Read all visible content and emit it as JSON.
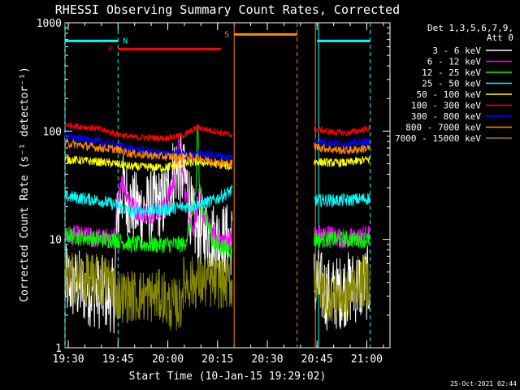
{
  "chart_data": {
    "type": "line",
    "title": "RHESSI Observing Summary Count Rates, Corrected",
    "xlabel": "Start Time (10-Jan-15 19:29:02)",
    "ylabel": "Corrected Count Rate (s⁻¹ detector⁻¹)",
    "y_scale": "log",
    "ylim": [
      1,
      1000
    ],
    "xlim_minutes": [
      0,
      98
    ],
    "x_ticks": [
      {
        "label": "19:30",
        "t": 1
      },
      {
        "label": "19:45",
        "t": 16
      },
      {
        "label": "20:00",
        "t": 31
      },
      {
        "label": "20:15",
        "t": 46
      },
      {
        "label": "20:30",
        "t": 61
      },
      {
        "label": "20:45",
        "t": 76
      },
      {
        "label": "21:00",
        "t": 91
      }
    ],
    "y_ticks": [
      {
        "label": "1",
        "v": 1
      },
      {
        "label": "10",
        "v": 10
      },
      {
        "label": "100",
        "v": 100
      },
      {
        "label": "1000",
        "v": 1000
      }
    ],
    "legend": {
      "header": [
        "Det 1,3,5,6,7,9,",
        "Att 0"
      ],
      "placement": "right"
    },
    "series": [
      {
        "name": "3 - 6 keV",
        "color": "#ffffff",
        "points": [
          [
            0,
            4
          ],
          [
            15,
            3
          ],
          [
            15.5,
            12
          ],
          [
            17,
            30
          ],
          [
            20,
            20
          ],
          [
            24,
            18
          ],
          [
            26,
            20
          ],
          [
            30,
            22
          ],
          [
            33,
            45
          ],
          [
            35,
            42
          ],
          [
            37,
            30
          ],
          [
            38.5,
            14
          ],
          [
            41,
            12
          ],
          [
            46,
            10
          ],
          [
            50,
            10
          ],
          [
            75.5,
            4
          ],
          [
            80,
            3
          ],
          [
            85,
            3.5
          ],
          [
            92,
            4
          ]
        ]
      },
      {
        "name": "6 - 12 keV",
        "color": "#ff00ff",
        "points": [
          [
            0,
            11
          ],
          [
            15,
            10
          ],
          [
            15.5,
            16
          ],
          [
            17,
            38
          ],
          [
            19,
            25
          ],
          [
            21,
            19
          ],
          [
            25,
            17
          ],
          [
            30,
            20
          ],
          [
            33,
            36
          ],
          [
            34.5,
            80
          ],
          [
            36,
            30
          ],
          [
            38.5,
            12
          ],
          [
            40.5,
            25
          ],
          [
            41.5,
            18
          ],
          [
            44,
            12
          ],
          [
            46,
            10
          ],
          [
            50,
            10
          ],
          [
            75.5,
            11
          ],
          [
            80,
            11
          ],
          [
            85,
            10
          ],
          [
            92,
            11
          ]
        ]
      },
      {
        "name": "12 - 25 keV",
        "color": "#00ff00",
        "points": [
          [
            0,
            11
          ],
          [
            10,
            10
          ],
          [
            15,
            10
          ],
          [
            20,
            9
          ],
          [
            30,
            9
          ],
          [
            36,
            9
          ],
          [
            38,
            14
          ],
          [
            39.5,
            28
          ],
          [
            40,
            140
          ],
          [
            40.5,
            30
          ],
          [
            42,
            18
          ],
          [
            45,
            9
          ],
          [
            50,
            8
          ],
          [
            75.5,
            10
          ],
          [
            80,
            10
          ],
          [
            85,
            10
          ],
          [
            92,
            10
          ]
        ]
      },
      {
        "name": "25 - 50 keV",
        "color": "#00ffff",
        "points": [
          [
            0,
            25
          ],
          [
            10,
            23
          ],
          [
            15,
            21
          ],
          [
            20,
            18
          ],
          [
            30,
            19
          ],
          [
            36,
            20
          ],
          [
            40,
            21
          ],
          [
            45,
            23
          ],
          [
            50,
            28
          ],
          [
            75.5,
            23
          ],
          [
            80,
            23
          ],
          [
            85,
            23
          ],
          [
            92,
            24
          ]
        ]
      },
      {
        "name": "50 - 100 keV",
        "color": "#ffff00",
        "points": [
          [
            0,
            55
          ],
          [
            10,
            52
          ],
          [
            15,
            50
          ],
          [
            20,
            47
          ],
          [
            30,
            46
          ],
          [
            36,
            50
          ],
          [
            40,
            52
          ],
          [
            45,
            50
          ],
          [
            50,
            47
          ],
          [
            75.5,
            52
          ],
          [
            80,
            51
          ],
          [
            85,
            51
          ],
          [
            92,
            55
          ]
        ]
      },
      {
        "name": "100 - 300 keV",
        "color": "#ff0000",
        "points": [
          [
            0,
            115
          ],
          [
            10,
            105
          ],
          [
            15,
            95
          ],
          [
            20,
            88
          ],
          [
            30,
            86
          ],
          [
            36,
            92
          ],
          [
            38,
            100
          ],
          [
            40,
            108
          ],
          [
            45,
            100
          ],
          [
            50,
            92
          ],
          [
            75.5,
            105
          ],
          [
            80,
            98
          ],
          [
            85,
            96
          ],
          [
            92,
            106
          ]
        ]
      },
      {
        "name": "300 - 800 keV",
        "color": "#0000ff",
        "points": [
          [
            0,
            90
          ],
          [
            10,
            80
          ],
          [
            15,
            75
          ],
          [
            20,
            68
          ],
          [
            30,
            62
          ],
          [
            36,
            62
          ],
          [
            40,
            62
          ],
          [
            45,
            60
          ],
          [
            50,
            57
          ],
          [
            75.5,
            80
          ],
          [
            80,
            78
          ],
          [
            85,
            76
          ],
          [
            92,
            80
          ]
        ]
      },
      {
        "name": "800 - 7000 keV",
        "color": "#ff8800",
        "points": [
          [
            0,
            78
          ],
          [
            10,
            70
          ],
          [
            15,
            68
          ],
          [
            20,
            62
          ],
          [
            30,
            58
          ],
          [
            36,
            58
          ],
          [
            40,
            57
          ],
          [
            45,
            52
          ],
          [
            50,
            50
          ],
          [
            75.5,
            72
          ],
          [
            80,
            68
          ],
          [
            85,
            66
          ],
          [
            92,
            70
          ]
        ]
      },
      {
        "name": "7000 - 15000 keV",
        "color": "#888800",
        "points": [
          [
            0,
            4.5
          ],
          [
            15,
            4
          ],
          [
            15.5,
            3
          ],
          [
            30,
            3
          ],
          [
            30.5,
            2.5
          ],
          [
            35,
            2.5
          ],
          [
            35.5,
            4
          ],
          [
            45,
            4
          ],
          [
            50,
            4
          ],
          [
            75.5,
            4.2
          ],
          [
            80,
            3
          ],
          [
            85,
            3
          ],
          [
            88,
            4
          ],
          [
            92,
            4
          ]
        ]
      }
    ],
    "annotations": {
      "gaps": [
        [
          50.5,
          75
        ]
      ],
      "saa_bar": {
        "label": "S",
        "color": "#ff8800",
        "t_start": 51,
        "t_end": 70,
        "value": 780
      },
      "night_bars": [
        {
          "label": "N",
          "color": "#00ffff",
          "t_start": 0,
          "t_end": 16,
          "value": 680
        },
        {
          "label": "",
          "color": "#00ffff",
          "t_start": 76,
          "t_end": 92,
          "value": 680
        }
      ],
      "flare_bar": {
        "label": "F",
        "color": "#ff0000",
        "t_start": 16,
        "t_end": 47,
        "value": 570
      },
      "vlines": [
        {
          "t": 0,
          "color": "#00ffff",
          "style": "dashed"
        },
        {
          "t": 16,
          "color": "#00ffff",
          "style": "dashed"
        },
        {
          "t": 51,
          "color": "#ff8800",
          "style": "solid"
        },
        {
          "t": 70,
          "color": "#ff8800",
          "style": "dashed"
        },
        {
          "t": 75.5,
          "color": "#ff8800",
          "style": "solid"
        },
        {
          "t": 76.5,
          "color": "#00ffff",
          "style": "solid"
        },
        {
          "t": 92,
          "color": "#00ffff",
          "style": "dashed"
        }
      ]
    },
    "date_stamp": "25-Oct-2021 02:44"
  }
}
